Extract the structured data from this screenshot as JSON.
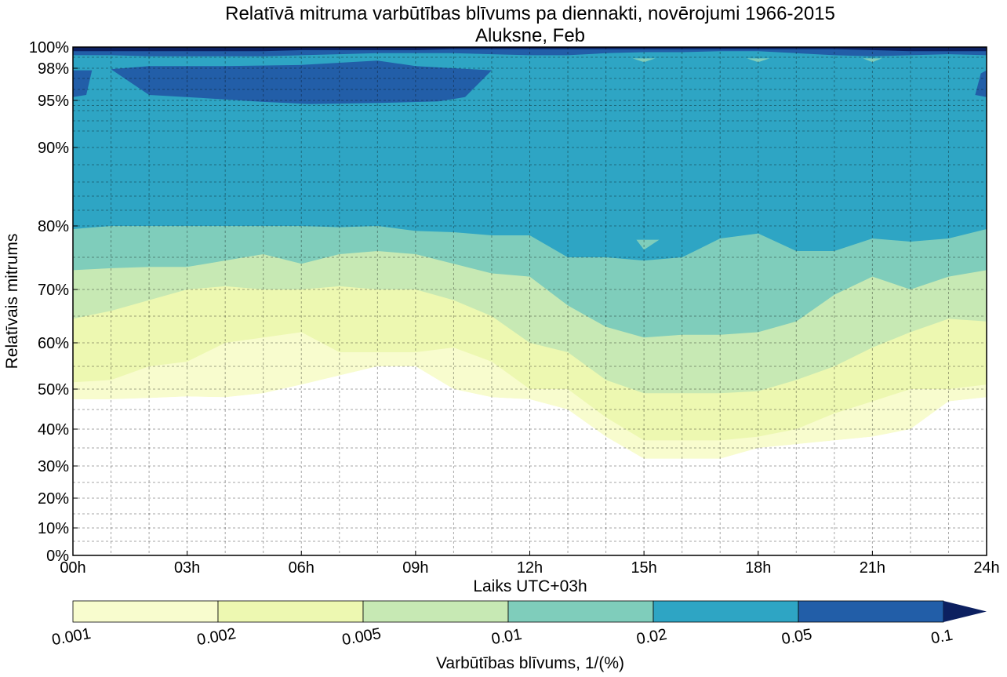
{
  "chart_data": {
    "type": "contourf",
    "title": "Relatīvā mitruma varbūtības blīvums pa diennakti, novērojumi 1966-2015",
    "subtitle": "Aluksne, Feb",
    "xlabel": "Laiks UTC+03h",
    "ylabel": "Relatīvais mitrums",
    "xlim": [
      0,
      24
    ],
    "ylim": [
      0,
      100
    ],
    "grid": true,
    "x_ticks": [
      0,
      3,
      6,
      9,
      12,
      15,
      18,
      21,
      24
    ],
    "x_tick_labels": [
      "00h",
      "03h",
      "06h",
      "09h",
      "12h",
      "15h",
      "18h",
      "21h",
      "24h"
    ],
    "y_ticks": [
      0,
      10,
      20,
      30,
      40,
      50,
      60,
      70,
      80,
      90,
      95,
      98,
      100
    ],
    "y_tick_labels": [
      "0%",
      "10%",
      "20%",
      "30%",
      "40%",
      "50%",
      "60%",
      "70%",
      "80%",
      "90%",
      "95%",
      "98%",
      "100%"
    ],
    "y_minor_grid": [
      5,
      15,
      25,
      35,
      45,
      55,
      65,
      75,
      82,
      84,
      86,
      88,
      91,
      92,
      93,
      94,
      96,
      97,
      99
    ],
    "colorbar": {
      "label": "Varbūtības blīvums, 1/(%)",
      "levels": [
        0.001,
        0.002,
        0.005,
        0.01,
        0.02,
        0.05,
        0.1
      ],
      "level_labels": [
        "0.001",
        "0.002",
        "0.005",
        "0.01",
        "0.02",
        "0.05",
        "0.1"
      ],
      "colors": [
        "#f8fcce",
        "#edf8b1",
        "#c7e9b4",
        "#7fcdbb",
        "#2ea5c4",
        "#225ea8",
        "#0c2060"
      ],
      "extend": "max",
      "orientation": "horizontal",
      "placement": "bottom"
    },
    "hours": [
      0,
      1,
      2,
      3,
      4,
      5,
      6,
      7,
      8,
      9,
      10,
      11,
      12,
      13,
      14,
      15,
      16,
      17,
      18,
      19,
      20,
      21,
      22,
      23,
      24
    ],
    "contours_lower_bound_RH": {
      "level_0.001": [
        47.5,
        47.5,
        47.8,
        48.2,
        48,
        49,
        51,
        53,
        55,
        55,
        50,
        48,
        47.5,
        45,
        38,
        32,
        32,
        32,
        35,
        36,
        37,
        38,
        40,
        47,
        48
      ],
      "level_0.002": [
        51.5,
        52,
        55,
        56,
        60,
        61,
        62,
        58,
        58,
        58,
        59,
        56,
        50,
        50,
        43,
        37,
        37,
        37,
        38,
        40,
        44,
        47,
        50,
        50,
        51
      ],
      "level_0.005": [
        64.5,
        66,
        68,
        70,
        70.5,
        70,
        70,
        70.5,
        70,
        70,
        68,
        65,
        60,
        58,
        52,
        49,
        49,
        49,
        49.5,
        52,
        55,
        59,
        62,
        64.5,
        64
      ],
      "level_0.01": [
        73,
        73.3,
        73.5,
        73.5,
        74.5,
        75.5,
        74,
        75.5,
        76,
        75.5,
        74,
        72.5,
        72,
        67,
        63,
        61,
        61.5,
        61.5,
        62,
        64,
        69,
        72,
        70,
        72,
        73
      ],
      "level_0.02": [
        79.5,
        80,
        80,
        80,
        80,
        80,
        80,
        79.8,
        80,
        79.2,
        79,
        78.5,
        78.5,
        75,
        75,
        74.5,
        75,
        78,
        78.8,
        76,
        76,
        78,
        77.5,
        78,
        79.5
      ],
      "level_0.05_upper_band": [
        99.2,
        99.2,
        99.1,
        99.1,
        99.1,
        99.1,
        99.2,
        99.3,
        99.4,
        99.4,
        99.4,
        99.3,
        99.2,
        99.2,
        99.4,
        99.5,
        99.5,
        99.6,
        99.6,
        99.4,
        99.2,
        99.1,
        99.2,
        99.3,
        99.2
      ],
      "level_0.1_top_band": [
        99.6,
        99.6,
        99.6,
        99.6,
        99.6,
        99.6,
        99.7,
        99.7,
        99.7,
        99.7,
        99.8,
        99.8,
        99.8,
        99.8,
        99.8,
        99.8,
        99.8,
        99.8,
        99.8,
        99.8,
        99.8,
        99.7,
        99.6,
        99.6,
        99.6
      ]
    },
    "dark_patch_level_0.05_RH_range": {
      "hours": [
        1,
        11
      ],
      "bottom_min": 94.5,
      "top_max": 98.2
    },
    "notes_visible": "Relatīvā mitruma varbūtības blīvums"
  }
}
